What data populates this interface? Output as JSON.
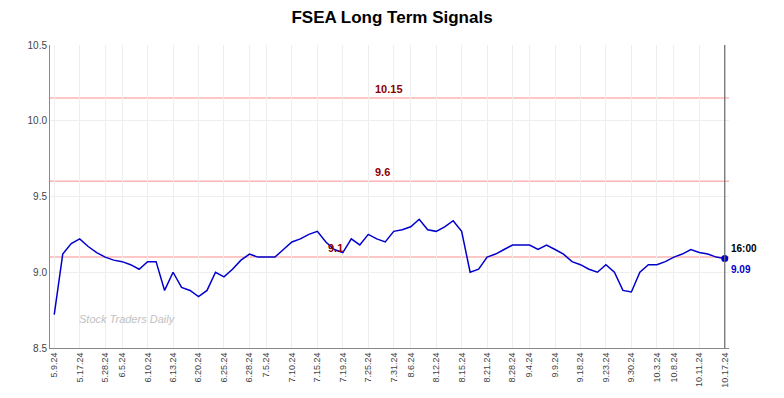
{
  "chart_data": {
    "type": "line",
    "title": "FSEA Long Term Signals",
    "categories": [
      "5.9.24",
      null,
      null,
      "5.17.24",
      null,
      null,
      "5.28.24",
      null,
      "6.5.24",
      null,
      null,
      "6.10.24",
      null,
      null,
      "6.13.24",
      null,
      null,
      "6.20.24",
      null,
      null,
      "6.25.24",
      null,
      null,
      "6.28.24",
      null,
      "7.5.24",
      null,
      null,
      "7.10.24",
      null,
      null,
      "7.15.24",
      null,
      null,
      "7.19.24",
      null,
      null,
      "7.25.24",
      null,
      null,
      "7.31.24",
      null,
      "8.6.24",
      null,
      null,
      "8.12.24",
      null,
      null,
      "8.15.24",
      null,
      null,
      "8.21.24",
      null,
      null,
      "8.28.24",
      null,
      "9.4.24",
      null,
      null,
      "9.9.24",
      null,
      null,
      "9.18.24",
      null,
      null,
      "9.23.24",
      null,
      null,
      "9.30.24",
      null,
      null,
      "10.3.24",
      null,
      "10.8.24",
      null,
      null,
      "10.11.24",
      null,
      null,
      "10.17.24"
    ],
    "values": [
      8.72,
      9.12,
      9.19,
      9.22,
      9.17,
      9.13,
      9.1,
      9.08,
      9.07,
      9.05,
      9.02,
      9.07,
      9.07,
      8.88,
      9.0,
      8.9,
      8.88,
      8.84,
      8.88,
      9.0,
      8.97,
      9.02,
      9.08,
      9.12,
      9.1,
      9.1,
      9.1,
      9.15,
      9.2,
      9.22,
      9.25,
      9.27,
      9.2,
      9.15,
      9.13,
      9.22,
      9.18,
      9.25,
      9.22,
      9.2,
      9.27,
      9.28,
      9.3,
      9.35,
      9.28,
      9.27,
      9.3,
      9.34,
      9.27,
      9.0,
      9.02,
      9.1,
      9.12,
      9.15,
      9.18,
      9.18,
      9.18,
      9.15,
      9.18,
      9.15,
      9.12,
      9.07,
      9.05,
      9.02,
      9.0,
      9.05,
      9.0,
      8.88,
      8.87,
      9.0,
      9.05,
      9.05,
      9.07,
      9.1,
      9.12,
      9.15,
      9.13,
      9.12,
      9.1,
      9.09
    ],
    "color": "#0000cc",
    "ylim": [
      8.5,
      10.5
    ],
    "yticks": [
      8.5,
      {
        "value": 9,
        "label": "9.0"
      },
      9.5,
      {
        "value": 10,
        "label": "10.0"
      },
      10.5
    ],
    "grid": true,
    "reference_lines": [
      {
        "value": 10.15,
        "label": "10.15",
        "color": "#ffb3b3",
        "label_color": "#8b0000"
      },
      {
        "value": 9.6,
        "label": "9.6",
        "color": "#ffb3b3",
        "label_color": "#8b0000"
      },
      {
        "value": 9.1,
        "label": "9.1",
        "color": "#ffb3b3",
        "label_color": "#8b0000"
      }
    ],
    "last_point": {
      "labels": [
        {
          "text": "16:00",
          "color": "#000000"
        },
        {
          "text": "9.09",
          "color": "#0000cc"
        }
      ]
    },
    "watermark": {
      "text": "Stock Traders Daily",
      "color": "#bbbbbb"
    }
  }
}
